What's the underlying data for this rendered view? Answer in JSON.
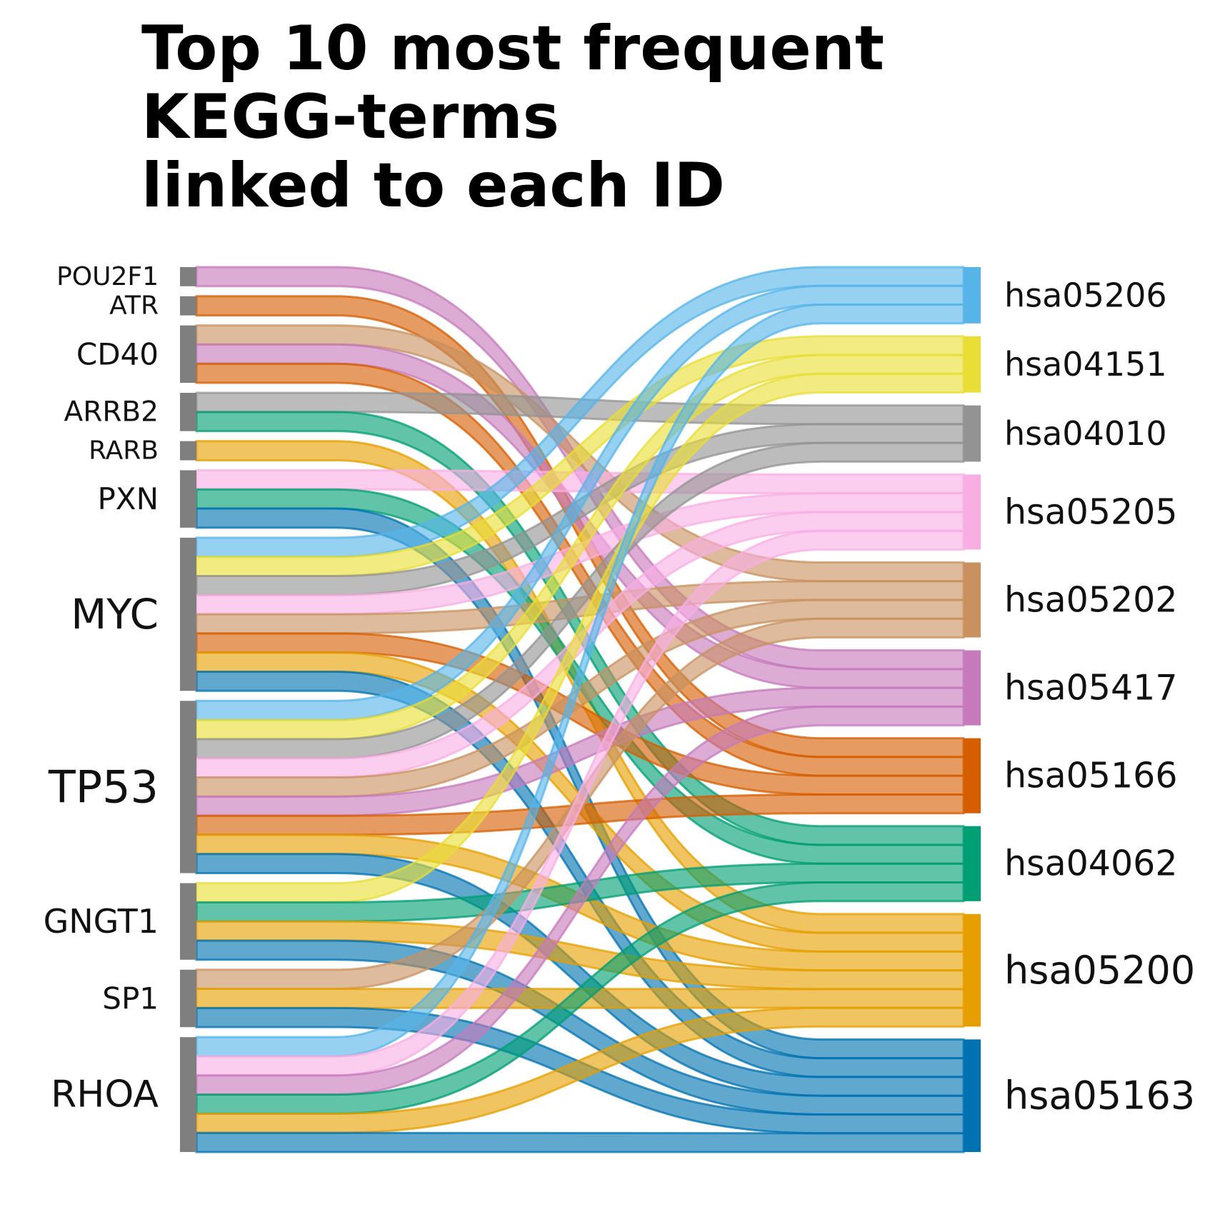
{
  "chart_data": {
    "type": "sankey",
    "title": [
      "Top 10 most frequent",
      "KEGG-terms",
      "linked to each ID"
    ],
    "source_nodes": [
      "POU2F1",
      "ATR",
      "CD40",
      "ARRB2",
      "RARB",
      "PXN",
      "MYC",
      "TP53",
      "GNGT1",
      "SP1",
      "RHOA"
    ],
    "target_nodes": [
      {
        "name": "hsa05206",
        "color": "#56B4E9"
      },
      {
        "name": "hsa04151",
        "color": "#E8DE35"
      },
      {
        "name": "hsa04010",
        "color": "#939393"
      },
      {
        "name": "hsa05205",
        "color": "#F9AEE3"
      },
      {
        "name": "hsa05202",
        "color": "#C8915F"
      },
      {
        "name": "hsa05417",
        "color": "#C679BB"
      },
      {
        "name": "hsa05166",
        "color": "#D55E00"
      },
      {
        "name": "hsa04062",
        "color": "#009E73"
      },
      {
        "name": "hsa05200",
        "color": "#E69F00"
      },
      {
        "name": "hsa05163",
        "color": "#0072B2"
      }
    ],
    "links": [
      {
        "source": "POU2F1",
        "target": "hsa05417",
        "value": 1
      },
      {
        "source": "ATR",
        "target": "hsa05166",
        "value": 1
      },
      {
        "source": "CD40",
        "target": "hsa05202",
        "value": 1
      },
      {
        "source": "CD40",
        "target": "hsa05417",
        "value": 1
      },
      {
        "source": "CD40",
        "target": "hsa05166",
        "value": 1
      },
      {
        "source": "ARRB2",
        "target": "hsa04010",
        "value": 1
      },
      {
        "source": "ARRB2",
        "target": "hsa04062",
        "value": 1
      },
      {
        "source": "RARB",
        "target": "hsa05200",
        "value": 1
      },
      {
        "source": "PXN",
        "target": "hsa05205",
        "value": 1
      },
      {
        "source": "PXN",
        "target": "hsa04062",
        "value": 1
      },
      {
        "source": "PXN",
        "target": "hsa05163",
        "value": 1
      },
      {
        "source": "MYC",
        "target": "hsa05206",
        "value": 1
      },
      {
        "source": "MYC",
        "target": "hsa04151",
        "value": 1
      },
      {
        "source": "MYC",
        "target": "hsa04010",
        "value": 1
      },
      {
        "source": "MYC",
        "target": "hsa05205",
        "value": 1
      },
      {
        "source": "MYC",
        "target": "hsa05202",
        "value": 1
      },
      {
        "source": "MYC",
        "target": "hsa05166",
        "value": 1
      },
      {
        "source": "MYC",
        "target": "hsa05200",
        "value": 1
      },
      {
        "source": "MYC",
        "target": "hsa05163",
        "value": 1
      },
      {
        "source": "TP53",
        "target": "hsa05206",
        "value": 1
      },
      {
        "source": "TP53",
        "target": "hsa04151",
        "value": 1
      },
      {
        "source": "TP53",
        "target": "hsa04010",
        "value": 1
      },
      {
        "source": "TP53",
        "target": "hsa05205",
        "value": 1
      },
      {
        "source": "TP53",
        "target": "hsa05202",
        "value": 1
      },
      {
        "source": "TP53",
        "target": "hsa05417",
        "value": 1
      },
      {
        "source": "TP53",
        "target": "hsa05166",
        "value": 1
      },
      {
        "source": "TP53",
        "target": "hsa05200",
        "value": 1
      },
      {
        "source": "TP53",
        "target": "hsa05163",
        "value": 1
      },
      {
        "source": "GNGT1",
        "target": "hsa04151",
        "value": 1
      },
      {
        "source": "GNGT1",
        "target": "hsa04062",
        "value": 1
      },
      {
        "source": "GNGT1",
        "target": "hsa05200",
        "value": 1
      },
      {
        "source": "GNGT1",
        "target": "hsa05163",
        "value": 1
      },
      {
        "source": "SP1",
        "target": "hsa05202",
        "value": 1
      },
      {
        "source": "SP1",
        "target": "hsa05200",
        "value": 1
      },
      {
        "source": "SP1",
        "target": "hsa05163",
        "value": 1
      },
      {
        "source": "RHOA",
        "target": "hsa05206",
        "value": 1
      },
      {
        "source": "RHOA",
        "target": "hsa05205",
        "value": 1
      },
      {
        "source": "RHOA",
        "target": "hsa05417",
        "value": 1
      },
      {
        "source": "RHOA",
        "target": "hsa04062",
        "value": 1
      },
      {
        "source": "RHOA",
        "target": "hsa05200",
        "value": 1
      },
      {
        "source": "RHOA",
        "target": "hsa05163",
        "value": 1
      }
    ],
    "source_node_color": "#7f7f7f"
  }
}
